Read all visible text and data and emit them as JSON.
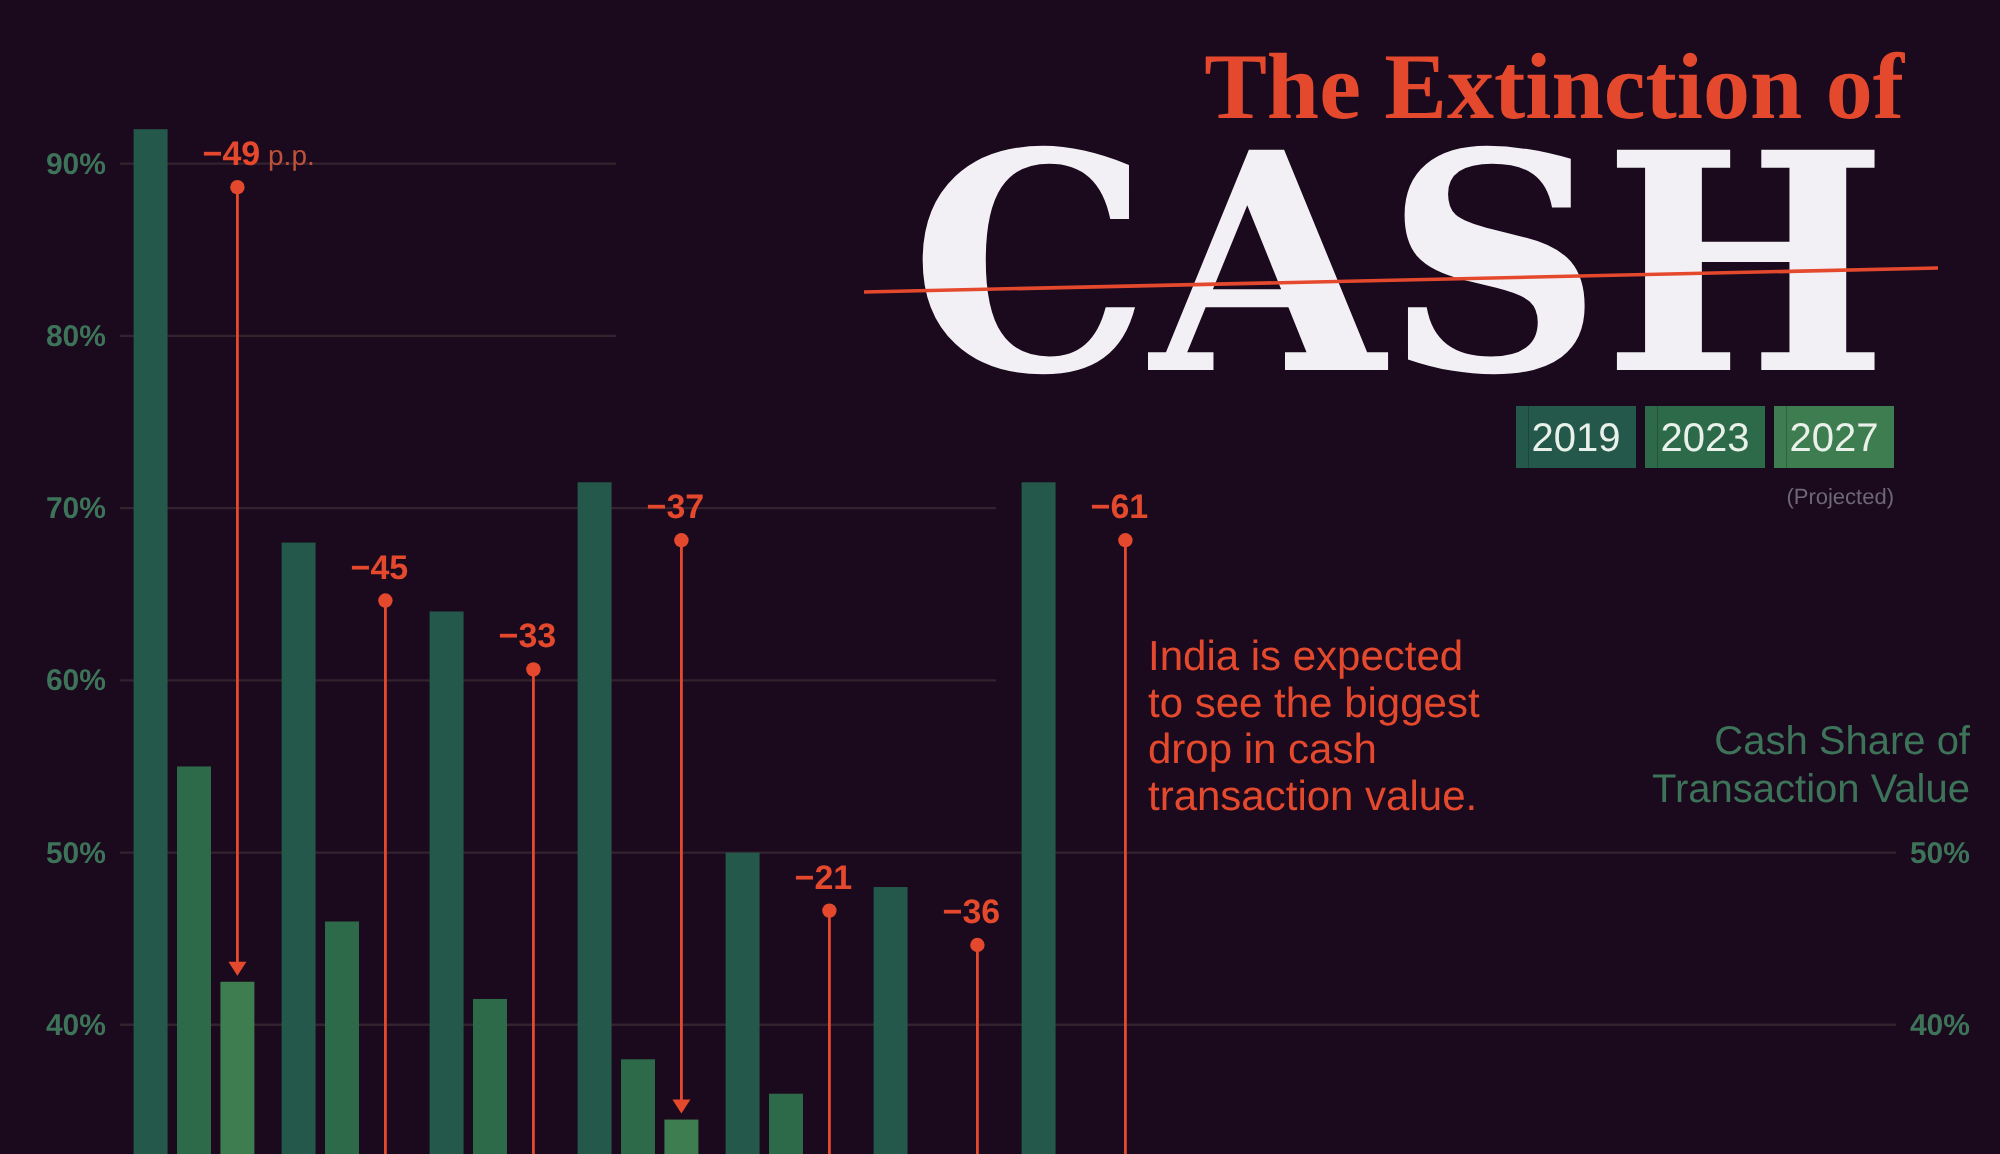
{
  "chart_data": {
    "type": "bar",
    "title": "The Extinction of CASH",
    "y2label": "Cash Share of Transaction Value",
    "categories": [
      null,
      null,
      null,
      null,
      null,
      null,
      null,
      null,
      null,
      null,
      null,
      null
    ],
    "series": [
      {
        "name": "2019",
        "color": "#24584b",
        "values": [
          92,
          68,
          64,
          71.5,
          50,
          48,
          71.5,
          null,
          null,
          null,
          null,
          null
        ]
      },
      {
        "name": "2023",
        "color": "#2c6a49",
        "values": [
          55,
          46,
          41.5,
          38,
          36,
          null,
          null,
          null,
          null,
          null,
          null,
          null
        ]
      },
      {
        "name": "2027",
        "color": "#3e7d50",
        "values": [
          42.5,
          null,
          null,
          34.5,
          null,
          null,
          null,
          null,
          null,
          null,
          null,
          null
        ]
      }
    ],
    "ylim": [
      32.5,
      99.5
    ],
    "yticks": [
      {
        "value": 40,
        "label": "40%"
      },
      {
        "value": 50,
        "label": "50%"
      },
      {
        "value": 60,
        "label": "60%"
      },
      {
        "value": 70,
        "label": "70%"
      },
      {
        "value": 80,
        "label": "80%"
      },
      {
        "value": 90,
        "label": "90%"
      }
    ],
    "y2lim": [
      32.5,
      99.5
    ],
    "y2ticks": [
      {
        "value": 40,
        "label": "40%"
      },
      {
        "value": 50,
        "label": "50%"
      }
    ],
    "grid": "y",
    "legend": "top right",
    "annotations": [
      "India is expected to see the biggest drop in cash transaction value.",
      "(Projected)",
      "−49 p.p.",
      "−45",
      "−33",
      "−37",
      "−21",
      "−36",
      "−61"
    ]
  }
}
